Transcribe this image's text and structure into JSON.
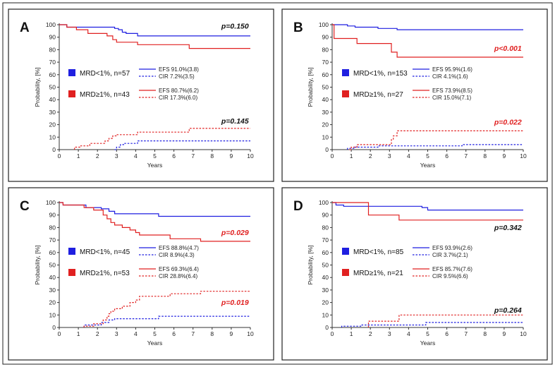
{
  "chart_data": [
    {
      "panel": "A",
      "type": "line",
      "xlabel": "Years",
      "ylabel": "Probability, [%]",
      "xlim": [
        0,
        10
      ],
      "ylim": [
        0,
        100
      ],
      "xticks": [
        "0",
        "1",
        "2",
        "3",
        "4",
        "5",
        "6",
        "7",
        "8",
        "9",
        "10"
      ],
      "yticks": [
        "0",
        "10",
        "20",
        "30",
        "40",
        "50",
        "60",
        "70",
        "80",
        "90",
        "100"
      ],
      "p_efs": "p=0.150",
      "p_efs_color": "#111111",
      "p_cir": "p=0.145",
      "p_cir_color": "#111111",
      "groups": [
        {
          "label": "MRD<1%, n=57",
          "color": "#1f1fe0"
        },
        {
          "label": "MRD≥1%, n=43",
          "color": "#e02020"
        }
      ],
      "series": [
        {
          "name": "EFS 91.0%(3.8)",
          "color": "#1f1fe0",
          "dash": false,
          "x": [
            0,
            0.4,
            0.4,
            2.9,
            2.9,
            3.1,
            3.1,
            3.3,
            3.3,
            3.5,
            3.5,
            4.1,
            4.1,
            10
          ],
          "y": [
            100,
            100,
            98,
            98,
            97,
            97,
            96,
            96,
            94,
            94,
            93,
            93,
            91,
            91
          ]
        },
        {
          "name": "CIR 7.2%(3.5)",
          "color": "#1f1fe0",
          "dash": true,
          "x": [
            2.9,
            3.0,
            3.0,
            3.2,
            3.2,
            3.4,
            3.4,
            4.1,
            4.1,
            10
          ],
          "y": [
            0,
            0,
            2,
            2,
            4,
            4,
            5,
            5,
            7,
            7
          ]
        },
        {
          "name": "EFS 80.7%(6.2)",
          "color": "#e02020",
          "dash": false,
          "x": [
            0,
            0.4,
            0.4,
            0.9,
            0.9,
            1.5,
            1.5,
            2.5,
            2.5,
            2.8,
            2.8,
            3.0,
            3.0,
            4.1,
            4.1,
            6.8,
            6.8,
            10
          ],
          "y": [
            100,
            100,
            98,
            98,
            96,
            96,
            93,
            93,
            91,
            91,
            88,
            88,
            86,
            86,
            84,
            84,
            81,
            81
          ]
        },
        {
          "name": "CIR 17.3%(6.0)",
          "color": "#e02020",
          "dash": true,
          "x": [
            0.8,
            0.8,
            1.1,
            1.1,
            1.6,
            1.6,
            2.4,
            2.4,
            2.6,
            2.6,
            2.8,
            2.8,
            3.0,
            3.0,
            4.1,
            4.1,
            6.8,
            6.8,
            10
          ],
          "y": [
            0,
            2,
            2,
            3,
            3,
            5,
            5,
            7,
            7,
            9,
            9,
            11,
            11,
            12,
            12,
            14,
            14,
            17,
            17
          ]
        }
      ]
    },
    {
      "panel": "B",
      "type": "line",
      "xlabel": "Years",
      "ylabel": "Probability, [%]",
      "xlim": [
        0,
        10
      ],
      "ylim": [
        0,
        100
      ],
      "xticks": [
        "0",
        "1",
        "2",
        "3",
        "4",
        "5",
        "6",
        "7",
        "8",
        "9",
        "10"
      ],
      "yticks": [
        "0",
        "10",
        "20",
        "30",
        "40",
        "50",
        "60",
        "70",
        "80",
        "90",
        "100"
      ],
      "p_efs": "p<0.001",
      "p_efs_color": "#e02020",
      "p_cir": "p=0.022",
      "p_cir_color": "#e02020",
      "groups": [
        {
          "label": "MRD<1%, n=153",
          "color": "#1f1fe0"
        },
        {
          "label": "MRD≥1%, n=27",
          "color": "#e02020"
        }
      ],
      "series": [
        {
          "name": "EFS 95.9%(1.6)",
          "color": "#1f1fe0",
          "dash": false,
          "x": [
            0,
            0.8,
            0.8,
            1.2,
            1.2,
            2.4,
            2.4,
            3.4,
            3.4,
            6.8,
            6.8,
            10
          ],
          "y": [
            100,
            100,
            99,
            99,
            98,
            98,
            97,
            97,
            96,
            96,
            96,
            96
          ]
        },
        {
          "name": "CIR 4.1%(1.6)",
          "color": "#1f1fe0",
          "dash": true,
          "x": [
            0.8,
            0.8,
            1.2,
            1.2,
            2.4,
            2.4,
            3.4,
            3.4,
            6.8,
            6.8,
            10
          ],
          "y": [
            0,
            1,
            1,
            2,
            2,
            3,
            3,
            3,
            3,
            4,
            4
          ]
        },
        {
          "name": "EFS 73.9%(8.5)",
          "color": "#e02020",
          "dash": false,
          "x": [
            0,
            0.1,
            0.1,
            1.3,
            1.3,
            3.1,
            3.1,
            3.4,
            3.4,
            10
          ],
          "y": [
            100,
            100,
            89,
            89,
            85,
            85,
            78,
            78,
            74,
            74
          ]
        },
        {
          "name": "CIR 15.0%(7.1)",
          "color": "#e02020",
          "dash": true,
          "x": [
            0.9,
            1.0,
            1.0,
            1.3,
            1.3,
            3.1,
            3.1,
            3.2,
            3.2,
            3.4,
            3.4,
            10
          ],
          "y": [
            0,
            0,
            2,
            2,
            4,
            4,
            8,
            8,
            11,
            11,
            15,
            15
          ]
        }
      ]
    },
    {
      "panel": "C",
      "type": "line",
      "xlabel": "Years",
      "ylabel": "Probability, [%]",
      "xlim": [
        0,
        10
      ],
      "ylim": [
        0,
        100
      ],
      "xticks": [
        "0",
        "1",
        "2",
        "3",
        "4",
        "5",
        "6",
        "7",
        "8",
        "9",
        "10"
      ],
      "yticks": [
        "0",
        "10",
        "20",
        "30",
        "40",
        "50",
        "60",
        "70",
        "80",
        "90",
        "100"
      ],
      "p_efs": "p=0.029",
      "p_efs_color": "#e02020",
      "p_cir": "p=0.019",
      "p_cir_color": "#e02020",
      "groups": [
        {
          "label": "MRD<1%, n=45",
          "color": "#1f1fe0"
        },
        {
          "label": "MRD≥1%, n=53",
          "color": "#e02020"
        }
      ],
      "series": [
        {
          "name": "EFS 88.8%(4.7)",
          "color": "#1f1fe0",
          "dash": false,
          "x": [
            0,
            0.2,
            0.2,
            1.4,
            1.4,
            2.2,
            2.2,
            2.6,
            2.6,
            2.9,
            2.9,
            5.2,
            5.2,
            10
          ],
          "y": [
            100,
            100,
            98,
            98,
            96,
            96,
            95,
            95,
            93,
            93,
            91,
            91,
            89,
            89
          ]
        },
        {
          "name": "CIR 8.9%(4.3)",
          "color": "#1f1fe0",
          "dash": true,
          "x": [
            1.3,
            1.3,
            2.2,
            2.2,
            2.6,
            2.6,
            2.9,
            2.9,
            5.2,
            5.2,
            10
          ],
          "y": [
            0,
            2,
            2,
            4,
            4,
            6,
            6,
            7,
            7,
            9,
            9
          ]
        },
        {
          "name": "EFS 69.3%(6.4)",
          "color": "#e02020",
          "dash": false,
          "x": [
            0,
            0.2,
            0.2,
            1.3,
            1.3,
            1.8,
            1.8,
            2.3,
            2.3,
            2.5,
            2.5,
            2.7,
            2.7,
            2.9,
            2.9,
            3.3,
            3.3,
            3.7,
            3.7,
            4.0,
            4.0,
            4.2,
            4.2,
            5.8,
            5.8,
            7.4,
            7.4,
            10
          ],
          "y": [
            100,
            100,
            98,
            98,
            96,
            96,
            94,
            94,
            90,
            90,
            87,
            87,
            84,
            84,
            82,
            82,
            80,
            80,
            78,
            78,
            76,
            76,
            74,
            74,
            71,
            71,
            69,
            69
          ]
        },
        {
          "name": "CIR 28.8%(6.4)",
          "color": "#e02020",
          "dash": true,
          "x": [
            1.3,
            1.3,
            1.8,
            1.8,
            2.3,
            2.3,
            2.5,
            2.5,
            2.6,
            2.6,
            2.7,
            2.7,
            2.9,
            2.9,
            3.3,
            3.3,
            3.7,
            3.7,
            4.0,
            4.0,
            4.2,
            4.2,
            5.8,
            5.8,
            7.4,
            7.4,
            10
          ],
          "y": [
            0,
            1,
            1,
            3,
            3,
            6,
            6,
            9,
            9,
            11,
            11,
            13,
            13,
            15,
            15,
            17,
            17,
            20,
            20,
            22,
            22,
            25,
            25,
            27,
            27,
            29,
            29
          ]
        }
      ]
    },
    {
      "panel": "D",
      "type": "line",
      "xlabel": "Years",
      "ylabel": "Probability, [%]",
      "xlim": [
        0,
        10
      ],
      "ylim": [
        0,
        100
      ],
      "xticks": [
        "0",
        "1",
        "2",
        "3",
        "4",
        "5",
        "6",
        "7",
        "8",
        "9",
        "10"
      ],
      "yticks": [
        "0",
        "10",
        "20",
        "30",
        "40",
        "50",
        "60",
        "70",
        "80",
        "90",
        "100"
      ],
      "p_efs": "p=0.342",
      "p_efs_color": "#111111",
      "p_cir": "p=0.264",
      "p_cir_color": "#111111",
      "groups": [
        {
          "label": "MRD<1%, n=85",
          "color": "#1f1fe0"
        },
        {
          "label": "MRD≥1%, n=21",
          "color": "#e02020"
        }
      ],
      "series": [
        {
          "name": "EFS 93.9%(2.6)",
          "color": "#1f1fe0",
          "dash": false,
          "x": [
            0,
            0.2,
            0.2,
            0.6,
            0.6,
            4.7,
            4.7,
            5.0,
            5.0,
            10
          ],
          "y": [
            100,
            100,
            98,
            98,
            97,
            97,
            96,
            96,
            94,
            94
          ]
        },
        {
          "name": "CIR 3.7%(2.1)",
          "color": "#1f1fe0",
          "dash": true,
          "x": [
            0.5,
            0.5,
            1.5,
            1.5,
            4.9,
            4.9,
            10
          ],
          "y": [
            0,
            1,
            1,
            2,
            2,
            4,
            4
          ]
        },
        {
          "name": "EFS 85.7%(7.6)",
          "color": "#e02020",
          "dash": false,
          "x": [
            0,
            1.9,
            1.9,
            3.5,
            3.5,
            10
          ],
          "y": [
            100,
            100,
            90,
            90,
            86,
            86
          ]
        },
        {
          "name": "CIR 9.5%(6.6)",
          "color": "#e02020",
          "dash": true,
          "x": [
            1.9,
            1.9,
            3.5,
            3.5,
            10
          ],
          "y": [
            0,
            5,
            5,
            10,
            10
          ]
        }
      ]
    }
  ]
}
